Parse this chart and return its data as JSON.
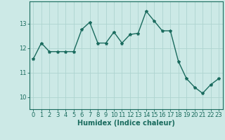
{
  "x": [
    0,
    1,
    2,
    3,
    4,
    5,
    6,
    7,
    8,
    9,
    10,
    11,
    12,
    13,
    14,
    15,
    16,
    17,
    18,
    19,
    20,
    21,
    22,
    23
  ],
  "y": [
    11.55,
    12.2,
    11.85,
    11.85,
    11.85,
    11.85,
    12.75,
    13.05,
    12.2,
    12.2,
    12.65,
    12.2,
    12.55,
    12.6,
    13.5,
    13.1,
    12.7,
    12.7,
    11.45,
    10.75,
    10.4,
    10.15,
    10.5,
    10.75
  ],
  "line_color": "#1a6b5e",
  "marker": "*",
  "marker_size": 3,
  "bg_color": "#cce9e6",
  "grid_color": "#aed4d0",
  "xlabel": "Humidex (Indice chaleur)",
  "xlabel_fontsize": 7,
  "tick_fontsize": 6,
  "ylim": [
    9.5,
    13.9
  ],
  "yticks": [
    10,
    11,
    12,
    13
  ],
  "xticks": [
    0,
    1,
    2,
    3,
    4,
    5,
    6,
    7,
    8,
    9,
    10,
    11,
    12,
    13,
    14,
    15,
    16,
    17,
    18,
    19,
    20,
    21,
    22,
    23
  ],
  "spine_color": "#1a6b5e",
  "line_width": 1.0
}
